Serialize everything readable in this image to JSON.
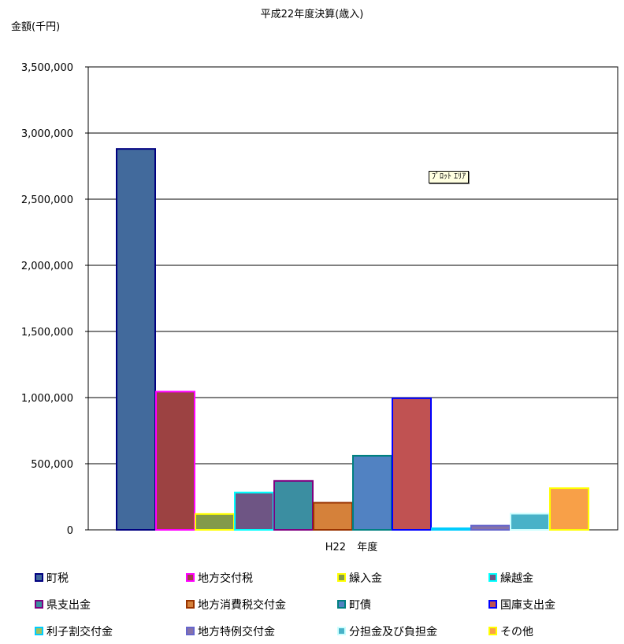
{
  "chart_data": {
    "type": "bar",
    "title": "平成22年度決算(歳入)",
    "ylabel": "金額(千円)",
    "xlabel": "年度",
    "categories": [
      "H22"
    ],
    "ylim": [
      0,
      3500000
    ],
    "yticks": [
      0,
      500000,
      1000000,
      1500000,
      2000000,
      2500000,
      3000000,
      3500000
    ],
    "ytick_labels": [
      "0",
      "500,000",
      "1,000,000",
      "1,500,000",
      "2,000,000",
      "2,500,000",
      "3,000,000",
      "3,500,000"
    ],
    "grid": true,
    "legend_position": "bottom",
    "series": [
      {
        "name": "町税",
        "values": [
          2880000
        ],
        "fill": "#426a9c",
        "border": "#000080"
      },
      {
        "name": "地方交付税",
        "values": [
          1045000
        ],
        "fill": "#9c4242",
        "border": "#ff00ff"
      },
      {
        "name": "繰入金",
        "values": [
          120000
        ],
        "fill": "#839a4a",
        "border": "#ffff00"
      },
      {
        "name": "繰越金",
        "values": [
          282000
        ],
        "fill": "#6e5584",
        "border": "#00ffff"
      },
      {
        "name": "県支出金",
        "values": [
          370000
        ],
        "fill": "#3b8ea1",
        "border": "#800080"
      },
      {
        "name": "地方消費税交付金",
        "values": [
          205000
        ],
        "fill": "#d5813a",
        "border": "#993300"
      },
      {
        "name": "町債",
        "values": [
          560000
        ],
        "fill": "#5182c2",
        "border": "#008080"
      },
      {
        "name": "国庫支出金",
        "values": [
          995000
        ],
        "fill": "#c05252",
        "border": "#0000ff"
      },
      {
        "name": "利子割交付金",
        "values": [
          12000
        ],
        "fill": "#a0c060",
        "border": "#00ccff"
      },
      {
        "name": "地方特例交付金",
        "values": [
          32000
        ],
        "fill": "#8672a8",
        "border": "#6666cc"
      },
      {
        "name": "分担金及び負担金",
        "values": [
          122000
        ],
        "fill": "#48b2c8",
        "border": "#ccffff"
      },
      {
        "name": "その他",
        "values": [
          315000
        ],
        "fill": "#f8a048",
        "border": "#ffff00"
      }
    ]
  },
  "tooltip": "ﾌﾟﾛｯﾄ ｴﾘｱ"
}
